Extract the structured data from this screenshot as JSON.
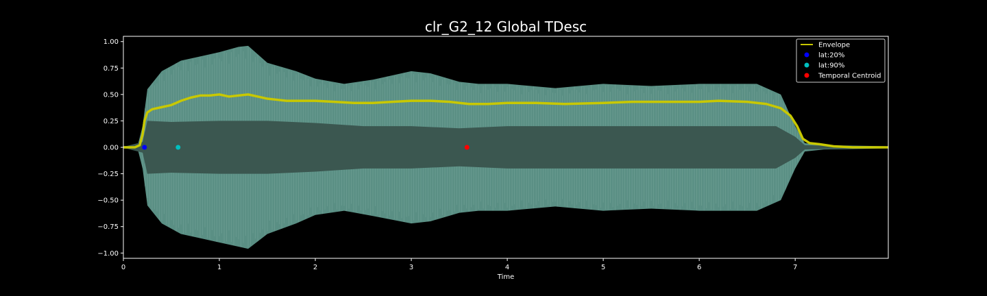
{
  "chart_data": {
    "type": "line",
    "title": "clr_G2_12 Global TDesc",
    "xlabel": "Time",
    "ylabel": "",
    "xlim": [
      0,
      7.97
    ],
    "ylim": [
      -1.05,
      1.05
    ],
    "xticks": [
      0,
      1,
      2,
      3,
      4,
      5,
      6,
      7
    ],
    "yticks": [
      1.0,
      0.75,
      0.5,
      0.25,
      0.0,
      -0.25,
      -0.5,
      -0.75,
      -1.0
    ],
    "xtick_labels": [
      "0",
      "1",
      "2",
      "3",
      "4",
      "5",
      "6",
      "7"
    ],
    "ytick_labels": [
      "1.00",
      "0.75",
      "0.50",
      "0.25",
      "0.00",
      "−0.25",
      "−0.50",
      "−0.75",
      "−1.00"
    ],
    "grid": false,
    "legend_position": "top-right",
    "waveform": {
      "color": "#5a8f84",
      "inner_color": "#3b5750",
      "outer_upper": [
        [
          0,
          0.01
        ],
        [
          0.15,
          0.02
        ],
        [
          0.2,
          0.2
        ],
        [
          0.25,
          0.55
        ],
        [
          0.4,
          0.72
        ],
        [
          0.6,
          0.82
        ],
        [
          0.8,
          0.86
        ],
        [
          1.0,
          0.9
        ],
        [
          1.2,
          0.95
        ],
        [
          1.3,
          0.96
        ],
        [
          1.5,
          0.8
        ],
        [
          1.8,
          0.72
        ],
        [
          2.0,
          0.65
        ],
        [
          2.3,
          0.6
        ],
        [
          2.6,
          0.64
        ],
        [
          3.0,
          0.72
        ],
        [
          3.2,
          0.7
        ],
        [
          3.5,
          0.62
        ],
        [
          3.7,
          0.6
        ],
        [
          4.0,
          0.6
        ],
        [
          4.5,
          0.56
        ],
        [
          5.0,
          0.6
        ],
        [
          5.5,
          0.58
        ],
        [
          6.0,
          0.6
        ],
        [
          6.3,
          0.6
        ],
        [
          6.6,
          0.6
        ],
        [
          6.85,
          0.5
        ],
        [
          7.0,
          0.2
        ],
        [
          7.1,
          0.04
        ],
        [
          7.3,
          0.02
        ],
        [
          7.97,
          0.01
        ]
      ],
      "outer_lower": [
        [
          0,
          -0.01
        ],
        [
          0.15,
          -0.02
        ],
        [
          0.2,
          -0.2
        ],
        [
          0.25,
          -0.55
        ],
        [
          0.4,
          -0.72
        ],
        [
          0.6,
          -0.82
        ],
        [
          0.8,
          -0.86
        ],
        [
          1.0,
          -0.9
        ],
        [
          1.2,
          -0.94
        ],
        [
          1.3,
          -0.96
        ],
        [
          1.5,
          -0.82
        ],
        [
          1.8,
          -0.72
        ],
        [
          2.0,
          -0.64
        ],
        [
          2.3,
          -0.6
        ],
        [
          2.6,
          -0.65
        ],
        [
          3.0,
          -0.72
        ],
        [
          3.2,
          -0.7
        ],
        [
          3.5,
          -0.62
        ],
        [
          3.7,
          -0.6
        ],
        [
          4.0,
          -0.6
        ],
        [
          4.5,
          -0.56
        ],
        [
          5.0,
          -0.6
        ],
        [
          5.5,
          -0.58
        ],
        [
          6.0,
          -0.6
        ],
        [
          6.3,
          -0.6
        ],
        [
          6.6,
          -0.6
        ],
        [
          6.85,
          -0.5
        ],
        [
          7.0,
          -0.2
        ],
        [
          7.1,
          -0.04
        ],
        [
          7.3,
          -0.02
        ],
        [
          7.97,
          -0.01
        ]
      ],
      "inner_upper": [
        [
          0,
          0.005
        ],
        [
          0.2,
          0.05
        ],
        [
          0.25,
          0.25
        ],
        [
          0.5,
          0.24
        ],
        [
          1.0,
          0.25
        ],
        [
          1.5,
          0.25
        ],
        [
          2.0,
          0.23
        ],
        [
          2.5,
          0.2
        ],
        [
          3.0,
          0.2
        ],
        [
          3.5,
          0.18
        ],
        [
          4.0,
          0.2
        ],
        [
          5.0,
          0.2
        ],
        [
          6.0,
          0.2
        ],
        [
          6.8,
          0.2
        ],
        [
          7.0,
          0.1
        ],
        [
          7.1,
          0.02
        ],
        [
          7.97,
          0.005
        ]
      ],
      "inner_lower": [
        [
          0,
          -0.005
        ],
        [
          0.2,
          -0.05
        ],
        [
          0.25,
          -0.25
        ],
        [
          0.5,
          -0.24
        ],
        [
          1.0,
          -0.25
        ],
        [
          1.5,
          -0.25
        ],
        [
          2.0,
          -0.23
        ],
        [
          2.5,
          -0.2
        ],
        [
          3.0,
          -0.2
        ],
        [
          3.5,
          -0.18
        ],
        [
          4.0,
          -0.2
        ],
        [
          5.0,
          -0.2
        ],
        [
          6.0,
          -0.2
        ],
        [
          6.8,
          -0.2
        ],
        [
          7.0,
          -0.1
        ],
        [
          7.1,
          -0.02
        ],
        [
          7.97,
          -0.005
        ]
      ]
    },
    "series": [
      {
        "name": "Envelope",
        "type": "line",
        "color": "#c8c800",
        "points": [
          [
            0,
            0.0
          ],
          [
            0.12,
            0.0
          ],
          [
            0.17,
            0.02
          ],
          [
            0.2,
            0.12
          ],
          [
            0.22,
            0.25
          ],
          [
            0.25,
            0.33
          ],
          [
            0.3,
            0.36
          ],
          [
            0.4,
            0.38
          ],
          [
            0.5,
            0.4
          ],
          [
            0.6,
            0.44
          ],
          [
            0.7,
            0.47
          ],
          [
            0.8,
            0.49
          ],
          [
            0.9,
            0.49
          ],
          [
            1.0,
            0.5
          ],
          [
            1.1,
            0.48
          ],
          [
            1.2,
            0.49
          ],
          [
            1.3,
            0.5
          ],
          [
            1.4,
            0.48
          ],
          [
            1.5,
            0.46
          ],
          [
            1.6,
            0.45
          ],
          [
            1.7,
            0.44
          ],
          [
            1.8,
            0.44
          ],
          [
            2.0,
            0.44
          ],
          [
            2.2,
            0.43
          ],
          [
            2.4,
            0.42
          ],
          [
            2.6,
            0.42
          ],
          [
            2.8,
            0.43
          ],
          [
            3.0,
            0.44
          ],
          [
            3.2,
            0.44
          ],
          [
            3.4,
            0.43
          ],
          [
            3.6,
            0.41
          ],
          [
            3.8,
            0.41
          ],
          [
            4.0,
            0.42
          ],
          [
            4.3,
            0.42
          ],
          [
            4.6,
            0.41
          ],
          [
            5.0,
            0.42
          ],
          [
            5.3,
            0.43
          ],
          [
            5.6,
            0.43
          ],
          [
            6.0,
            0.43
          ],
          [
            6.2,
            0.44
          ],
          [
            6.5,
            0.43
          ],
          [
            6.7,
            0.41
          ],
          [
            6.85,
            0.37
          ],
          [
            6.95,
            0.3
          ],
          [
            7.02,
            0.2
          ],
          [
            7.08,
            0.08
          ],
          [
            7.15,
            0.04
          ],
          [
            7.25,
            0.03
          ],
          [
            7.4,
            0.01
          ],
          [
            7.6,
            0.0
          ],
          [
            7.97,
            0.0
          ]
        ]
      },
      {
        "name": "lat:20%",
        "type": "scatter",
        "color": "#0000ff",
        "points": [
          [
            0.22,
            0.0
          ]
        ]
      },
      {
        "name": "lat:90%",
        "type": "scatter",
        "color": "#00bfbf",
        "points": [
          [
            0.57,
            0.0
          ]
        ]
      },
      {
        "name": "Temporal Centroid",
        "type": "scatter",
        "color": "#ff0000",
        "points": [
          [
            3.58,
            0.0
          ]
        ]
      }
    ]
  }
}
